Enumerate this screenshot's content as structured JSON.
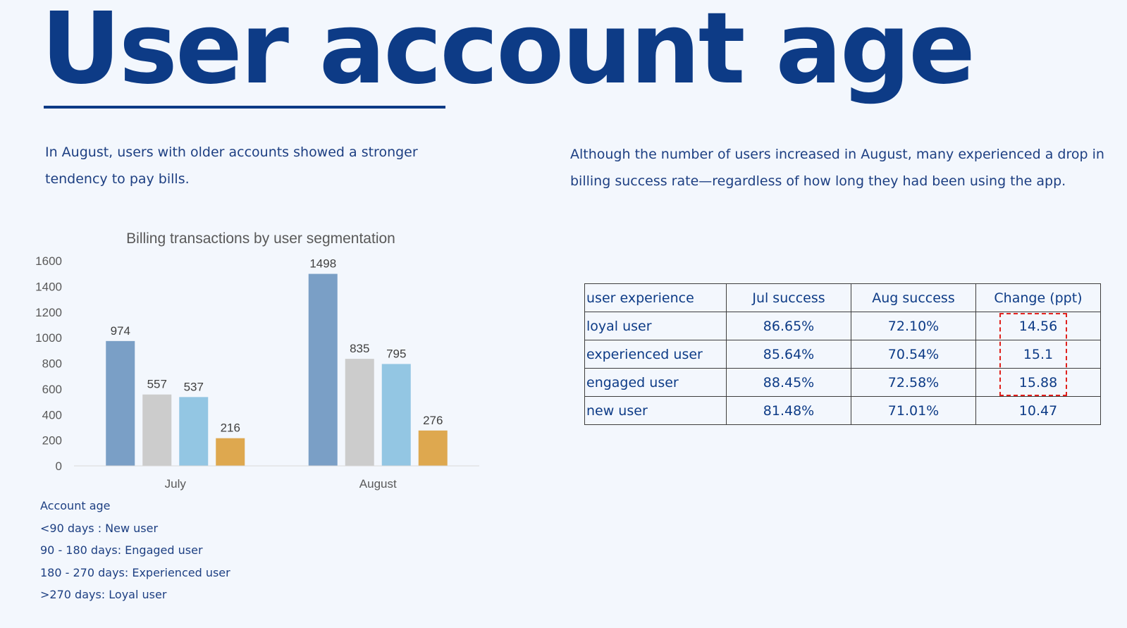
{
  "page": {
    "title": "User account age",
    "left_text": "In August, users with older accounts showed a stronger tendency to pay bills.",
    "right_text": "Although the number of users increased in August, many experienced a drop in billing success rate—regardless of how long they had been using the app."
  },
  "chart_data": {
    "type": "bar",
    "title": "Billing transactions by user segmentation",
    "categories": [
      "July",
      "August"
    ],
    "series": [
      {
        "values": [
          974,
          1498
        ],
        "color": "#7a9fc6"
      },
      {
        "values": [
          557,
          835
        ],
        "color": "#cccccc"
      },
      {
        "values": [
          537,
          795
        ],
        "color": "#93c6e3"
      },
      {
        "values": [
          216,
          276
        ],
        "color": "#dea84f"
      }
    ],
    "ylim": [
      0,
      1600
    ],
    "yticks": [
      0,
      200,
      400,
      600,
      800,
      1000,
      1200,
      1400,
      1600
    ],
    "grid": false,
    "data_labels": true
  },
  "legend_notes": {
    "heading": "Account age",
    "items": [
      "<90 days : New user",
      "90 - 180 days: Engaged user",
      "180 - 270 days: Experienced user",
      ">270 days: Loyal user"
    ]
  },
  "table": {
    "headers": [
      "user experience",
      "Jul success",
      "Aug success",
      "Change (ppt)"
    ],
    "rows": [
      [
        "loyal user",
        "86.65%",
        "72.10%",
        "14.56"
      ],
      [
        "experienced user",
        "85.64%",
        "70.54%",
        "15.1"
      ],
      [
        "engaged user",
        "88.45%",
        "72.58%",
        "15.88"
      ],
      [
        "new user",
        "81.48%",
        "71.01%",
        "10.47"
      ]
    ],
    "highlight_color": "#e0201c"
  }
}
